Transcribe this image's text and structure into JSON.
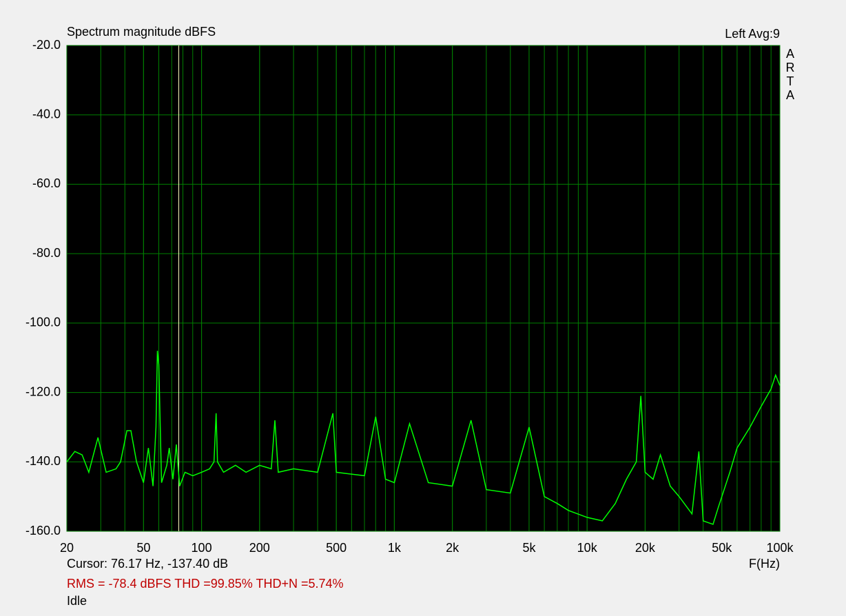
{
  "chart_data": {
    "type": "line",
    "title": "Spectrum magnitude dBFS",
    "channel_label": "Left  Avg:9",
    "side_label": "ARTA",
    "x_label": "F(Hz)",
    "cursor": {
      "label": "Cursor: 76.17 Hz, -137.40 dB",
      "x": 76.17,
      "color": "#ffffc0"
    },
    "stats": "RMS =  -78.4 dBFS  THD =99.85%  THD+N =5.74%",
    "status": "Idle",
    "xscale": "log",
    "grid": true,
    "grid_color": "#008000",
    "background": "#000000",
    "xlim": [
      20,
      100000
    ],
    "ylim": [
      -160,
      -20
    ],
    "xticks": [
      20,
      50,
      100,
      200,
      500,
      {
        "value": 1000,
        "label": "1k"
      },
      {
        "value": 2000,
        "label": "2k"
      },
      {
        "value": 5000,
        "label": "5k"
      },
      {
        "value": 10000,
        "label": "10k"
      },
      {
        "value": 20000,
        "label": "20k"
      },
      {
        "value": 50000,
        "label": "50k"
      },
      {
        "value": 100000,
        "label": "100k"
      }
    ],
    "yticks": [
      {
        "value": -20,
        "label": "-20.0"
      },
      {
        "value": -40,
        "label": "-40.0"
      },
      {
        "value": -60,
        "label": "-60.0"
      },
      {
        "value": -80,
        "label": "-80.0"
      },
      {
        "value": -100,
        "label": "-100.0"
      },
      {
        "value": -120,
        "label": "-120.0"
      },
      {
        "value": -140,
        "label": "-140.0"
      },
      {
        "value": -160,
        "label": "-160.0"
      }
    ],
    "series": [
      {
        "color": "#00ff00",
        "x": [
          20,
          22,
          24,
          26,
          29,
          32,
          36,
          38,
          41,
          43,
          46,
          50,
          53,
          56,
          58,
          59,
          60,
          62,
          66,
          68,
          71,
          74,
          77,
          82,
          90,
          100,
          110,
          116,
          119,
          121,
          130,
          150,
          170,
          200,
          230,
          240,
          250,
          300,
          400,
          480,
          500,
          700,
          800,
          900,
          1000,
          1200,
          1500,
          2000,
          2500,
          3000,
          4000,
          5000,
          6000,
          7000,
          8000,
          10000,
          12000,
          14000,
          16000,
          18000,
          19000,
          20000,
          22000,
          24000,
          27000,
          30000,
          35000,
          38000,
          40000,
          45000,
          48000,
          55000,
          60000,
          70000,
          80000,
          90000,
          95000,
          100000
        ],
        "values": [
          -140,
          -137,
          -138,
          -143,
          -133,
          -143,
          -142,
          -140,
          -131,
          -131,
          -140,
          -146,
          -136,
          -147,
          -130,
          -108,
          -112,
          -146,
          -141,
          -136,
          -145,
          -135,
          -147,
          -143,
          -144,
          -143,
          -142,
          -140,
          -126,
          -140,
          -143,
          -141,
          -143,
          -141,
          -142,
          -128,
          -143,
          -142,
          -143,
          -126,
          -143,
          -144,
          -127,
          -145,
          -146,
          -129,
          -146,
          -147,
          -128,
          -148,
          -149,
          -130,
          -150,
          -152,
          -154,
          -156,
          -157,
          -152,
          -145,
          -140,
          -121,
          -143,
          -145,
          -138,
          -147,
          -150,
          -155,
          -137,
          -157,
          -158,
          -153,
          -143,
          -136,
          -130,
          -124,
          -119,
          -115,
          -118
        ]
      }
    ]
  }
}
